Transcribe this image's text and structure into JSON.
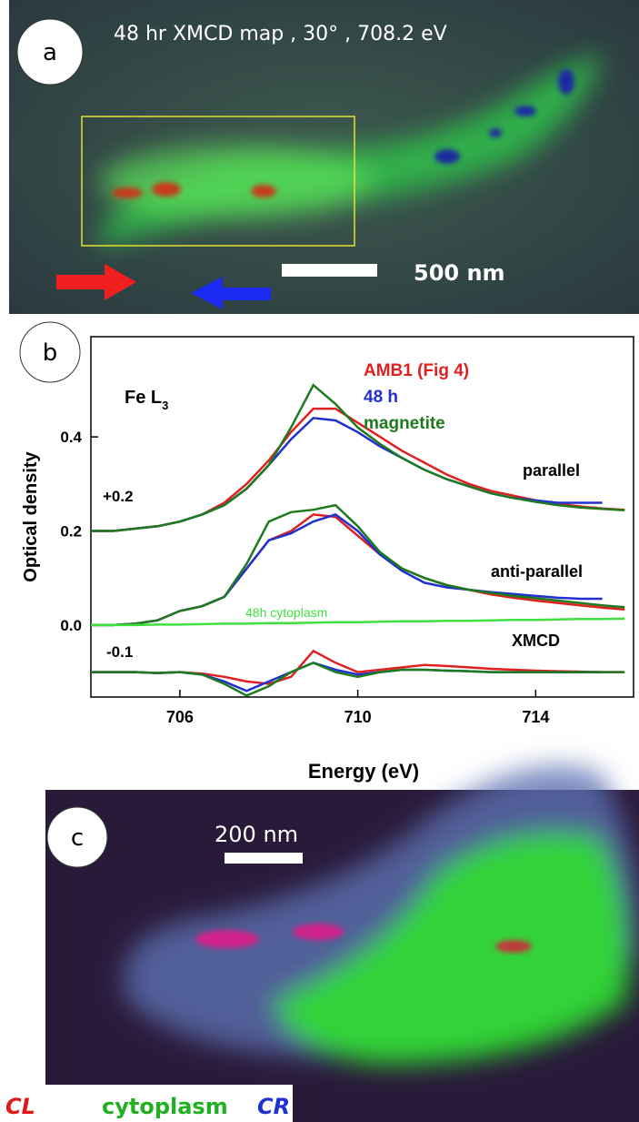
{
  "panel_a": {
    "label": "a",
    "title": "48 hr  XMCD map , 30° , 708.2 eV",
    "scale_bar": "500 nm"
  },
  "chart_data": {
    "type": "line",
    "panel_label": "b",
    "xlabel": "Energy (eV)",
    "ylabel": "Optical density",
    "element_label": "Fe L",
    "element_subscript": "3",
    "curve_labels": [
      "parallel",
      "anti-parallel",
      "XMCD"
    ],
    "offset_labels": [
      "+0.2",
      "-0.1"
    ],
    "xlim": [
      704,
      716.2
    ],
    "ylim": [
      -0.153,
      0.613
    ],
    "xticks": [
      706,
      710,
      714
    ],
    "yticks": [
      {
        "value": 0,
        "label": "0.0"
      },
      0.2,
      0.4
    ],
    "x": [
      704,
      704.5,
      705,
      705.5,
      706,
      706.5,
      707,
      707.5,
      708,
      708.5,
      709,
      709.5,
      710,
      710.5,
      711,
      711.5,
      712,
      712.5,
      713,
      713.5,
      714,
      714.5,
      715,
      715.5,
      716
    ],
    "series": [
      {
        "name": "AMB1 (Fig 4)",
        "color": "#e02020",
        "curves": [
          [
            0.2,
            0.2,
            0.205,
            0.21,
            0.22,
            0.235,
            0.26,
            0.3,
            0.35,
            0.41,
            0.46,
            0.46,
            0.43,
            0.4,
            0.37,
            0.345,
            0.32,
            0.3,
            0.285,
            0.275,
            0.265,
            0.258,
            0.252,
            0.248,
            0.245
          ],
          [
            0.0,
            0.0,
            0.003,
            0.01,
            0.03,
            0.04,
            0.06,
            0.12,
            0.18,
            0.2,
            0.235,
            0.23,
            0.19,
            0.15,
            0.12,
            0.1,
            0.085,
            0.075,
            0.065,
            0.058,
            0.052,
            0.047,
            0.042,
            0.037,
            0.033
          ],
          [
            -0.1,
            -0.1,
            -0.1,
            -0.102,
            -0.1,
            -0.103,
            -0.11,
            -0.12,
            -0.125,
            -0.11,
            -0.055,
            -0.08,
            -0.1,
            -0.095,
            -0.09,
            -0.085,
            -0.087,
            -0.09,
            -0.093,
            -0.095,
            -0.097,
            -0.098,
            -0.099,
            -0.1,
            -0.1
          ]
        ]
      },
      {
        "name": "48 h",
        "color": "#2030d0",
        "curves": [
          [
            0.2,
            0.2,
            0.205,
            0.21,
            0.22,
            0.235,
            0.255,
            0.29,
            0.34,
            0.395,
            0.44,
            0.435,
            0.41,
            0.38,
            0.355,
            0.33,
            0.31,
            0.295,
            0.28,
            0.27,
            0.265,
            0.26,
            0.26,
            0.26,
            null
          ],
          [
            0.0,
            0.0,
            0.003,
            0.01,
            0.03,
            0.04,
            0.06,
            0.12,
            0.18,
            0.195,
            0.22,
            0.235,
            0.2,
            0.15,
            0.115,
            0.09,
            0.08,
            0.075,
            0.07,
            0.066,
            0.062,
            0.058,
            0.056,
            0.056,
            null
          ],
          [
            -0.1,
            -0.1,
            -0.1,
            -0.102,
            -0.1,
            -0.105,
            -0.12,
            -0.14,
            -0.12,
            -0.1,
            -0.08,
            -0.095,
            -0.105,
            -0.1,
            -0.095,
            -0.095,
            -0.097,
            -0.098,
            -0.1,
            -0.1,
            -0.1,
            -0.1,
            -0.1,
            -0.1,
            null
          ]
        ]
      },
      {
        "name": "magnetite",
        "color": "#1e7a1e",
        "curves": [
          [
            0.2,
            0.2,
            0.205,
            0.21,
            0.22,
            0.235,
            0.255,
            0.29,
            0.34,
            0.42,
            0.51,
            0.47,
            0.42,
            0.385,
            0.355,
            0.33,
            0.31,
            0.295,
            0.28,
            0.27,
            0.262,
            0.255,
            0.25,
            0.247,
            0.244
          ],
          [
            0.0,
            0.0,
            0.003,
            0.01,
            0.03,
            0.04,
            0.06,
            0.13,
            0.22,
            0.24,
            0.245,
            0.255,
            0.21,
            0.155,
            0.12,
            0.1,
            0.085,
            0.075,
            0.068,
            0.062,
            0.057,
            0.052,
            0.047,
            0.042,
            0.038
          ],
          [
            -0.1,
            -0.1,
            -0.1,
            -0.102,
            -0.1,
            -0.105,
            -0.125,
            -0.15,
            -0.13,
            -0.1,
            -0.08,
            -0.1,
            -0.11,
            -0.1,
            -0.095,
            -0.095,
            -0.097,
            -0.098,
            -0.1,
            -0.1,
            -0.1,
            -0.1,
            -0.1,
            -0.1,
            -0.1
          ]
        ]
      },
      {
        "name": "48h cytoplasm",
        "color": "#3ee03e",
        "curves": [
          [
            0,
            0,
            0,
            0.001,
            0.001,
            0.002,
            0.003,
            0.003,
            0.004,
            0.004,
            0.005,
            0.006,
            0.006,
            0.007,
            0.008,
            0.008,
            0.009,
            0.009,
            0.01,
            0.011,
            0.011,
            0.012,
            0.013,
            0.013,
            0.014
          ]
        ]
      }
    ]
  },
  "panel_c": {
    "label": "c",
    "scale_bar": "200 nm",
    "legend": [
      "CL",
      "cytoplasm",
      "CR"
    ]
  }
}
